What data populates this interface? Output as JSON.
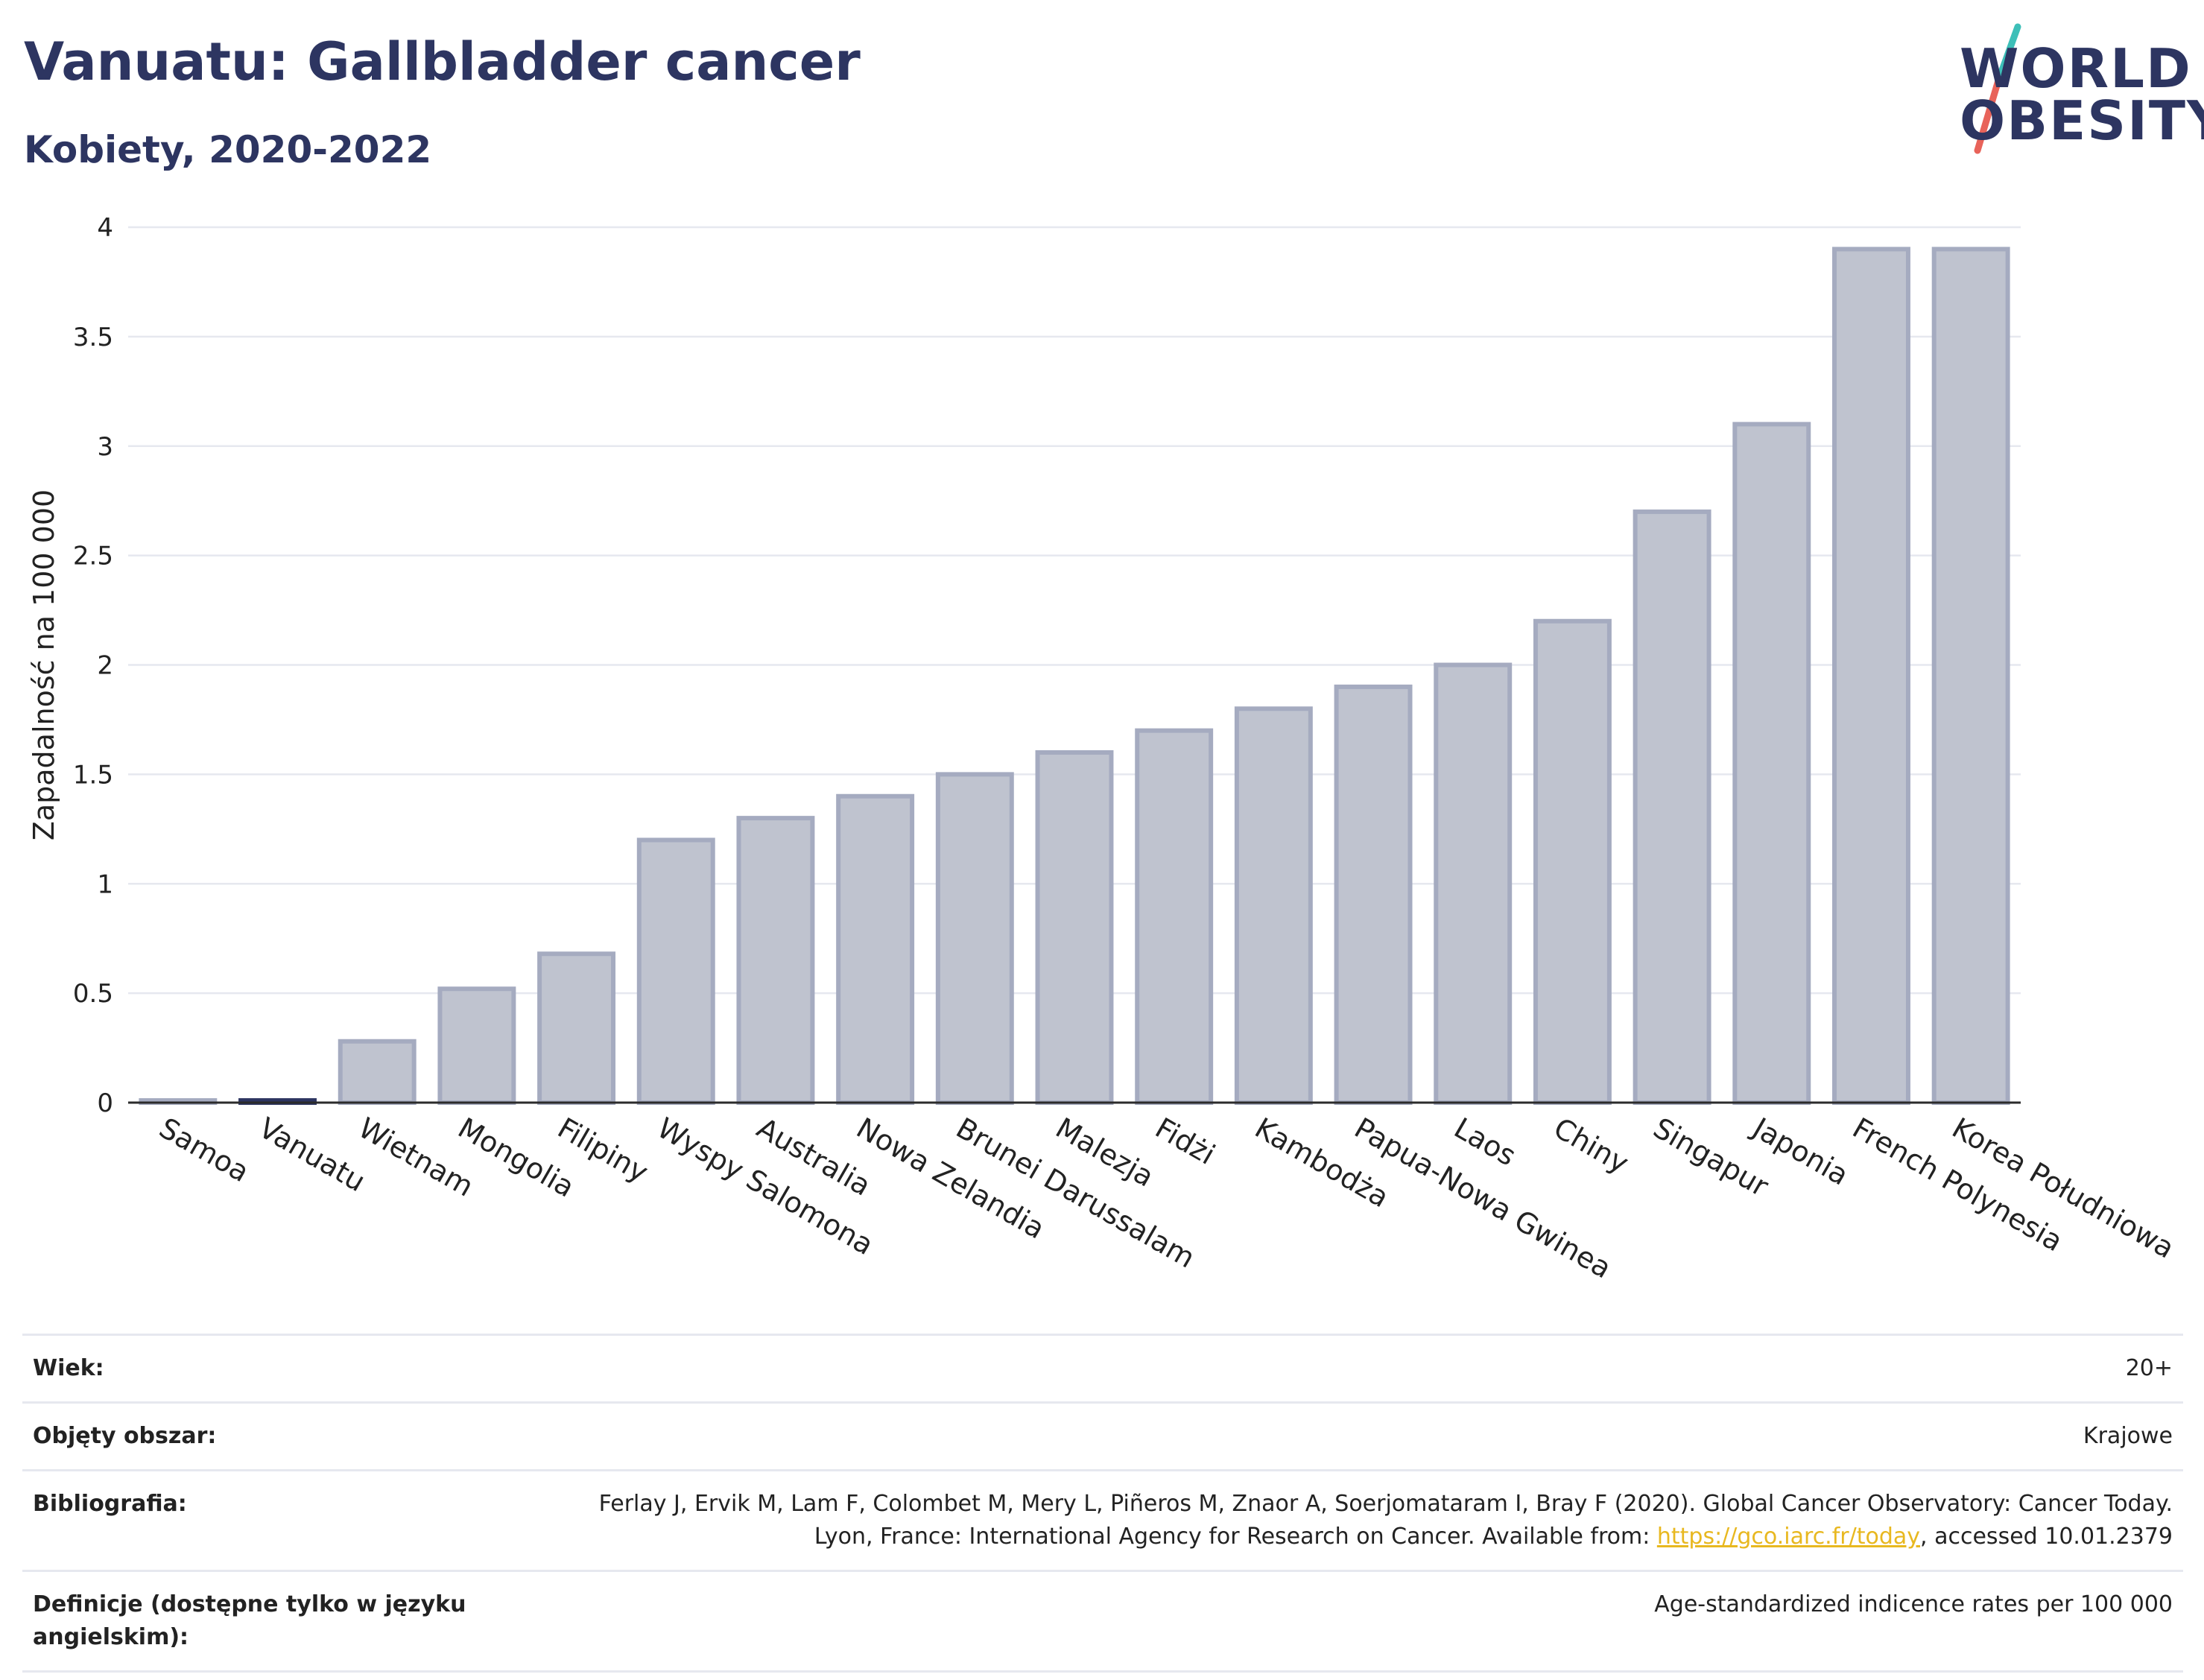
{
  "header": {
    "title": "Vanuatu: Gallbladder cancer",
    "subtitle": "Kobiety, 2020-2022"
  },
  "logo": {
    "line1": "WORLD",
    "line2": "OBESITY",
    "colors": {
      "text": "#2d3561",
      "slash_top": "#3dbfb8",
      "slash_bottom": "#e8635a"
    }
  },
  "chart_data": {
    "type": "bar",
    "categories": [
      "Samoa",
      "Vanuatu",
      "Wietnam",
      "Mongolia",
      "Filipiny",
      "Wyspy Salomona",
      "Australia",
      "Nowa Zelandia",
      "Brunei Darussalam",
      "Malezja",
      "Fidżi",
      "Kambodża",
      "Papua-Nowa Gwinea",
      "Laos",
      "Chiny",
      "Singapur",
      "Japonia",
      "French Polynesia",
      "Korea Południowa"
    ],
    "values": [
      0.01,
      0.01,
      0.28,
      0.52,
      0.68,
      1.2,
      1.3,
      1.4,
      1.5,
      1.6,
      1.7,
      1.8,
      1.9,
      2.0,
      2.2,
      2.7,
      3.1,
      3.9,
      3.9
    ],
    "highlight": "Vanuatu",
    "ylabel": "Zapadalność na 100 000",
    "ylim": [
      0,
      4
    ],
    "yticks": [
      0,
      0.5,
      1,
      1.5,
      2,
      2.5,
      3,
      3.5,
      4
    ],
    "ytick_labels": [
      "0",
      "0.5",
      "1",
      "1.5",
      "2",
      "2.5",
      "3",
      "3.5",
      "4"
    ],
    "grid": true,
    "colors": {
      "bar_fill": "#bfc3cf",
      "bar_stroke": "#a5abc0",
      "highlight": "#2d3561"
    }
  },
  "meta": [
    {
      "key": "Wiek:",
      "value": "20+"
    },
    {
      "key": "Objęty obszar:",
      "value": "Krajowe"
    },
    {
      "key": "Bibliografia:",
      "value_before": "Ferlay J, Ervik M, Lam F, Colombet M, Mery L, Piñeros M, Znaor A, Soerjomataram I, Bray F (2020). Global Cancer Observatory: Cancer Today. Lyon, France: International Agency for Research on Cancer. Available from: ",
      "link": "https://gco.iarc.fr/today",
      "value_after": ", accessed 10.01.2379"
    },
    {
      "key": "Definicje (dostępne tylko w języku angielskim):",
      "value": "Age-standardized indicence rates per 100 000"
    }
  ]
}
